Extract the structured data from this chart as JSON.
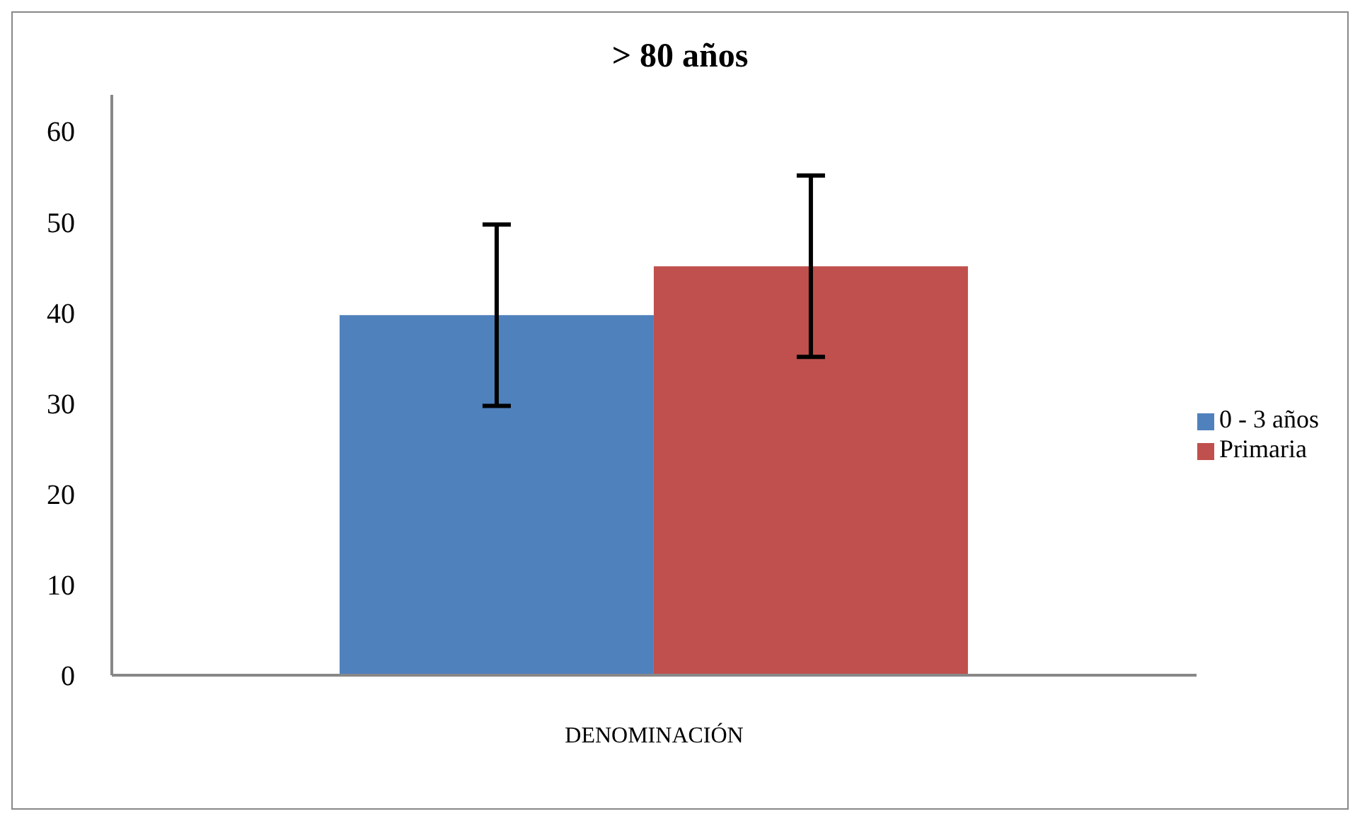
{
  "chart_data": {
    "type": "bar",
    "title": "> 80 años",
    "categories": [
      "DENOMINACIÓN"
    ],
    "series": [
      {
        "name": "0 - 3 años",
        "color": "#4f81bd",
        "values": [
          39.7
        ],
        "errors": [
          10
        ]
      },
      {
        "name": "Primaria",
        "color": "#c0504d",
        "values": [
          45.1
        ],
        "errors": [
          10
        ]
      }
    ],
    "ylim": [
      0,
      64
    ],
    "yticks": [
      0,
      10,
      20,
      30,
      40,
      50,
      60
    ],
    "grid": false,
    "legend": "right"
  }
}
